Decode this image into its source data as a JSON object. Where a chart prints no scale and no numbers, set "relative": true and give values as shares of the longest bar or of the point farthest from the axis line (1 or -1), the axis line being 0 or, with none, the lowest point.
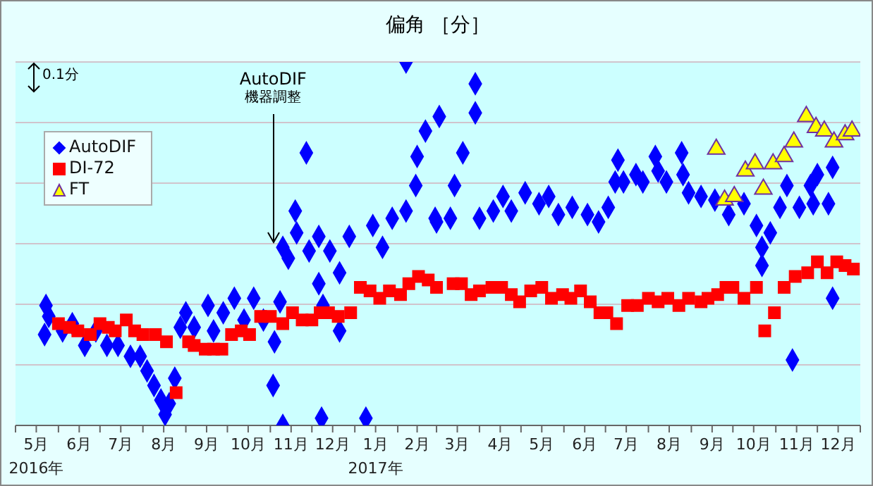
{
  "chart_data": {
    "type": "scatter",
    "title": "偏角 ［分］",
    "relative": true,
    "grid": "y",
    "legend": "top left",
    "tick_labels": "x",
    "xlim": [
      "2016-05-01",
      "2018-01-01"
    ],
    "xticks": [
      {
        "value": "2016-05-01",
        "label": null
      },
      {
        "value": "2016-05-16",
        "label": "5月\n2016年"
      },
      {
        "value": "2016-06-01",
        "label": null
      },
      {
        "value": "2016-06-16",
        "label": "6月"
      },
      {
        "value": "2016-07-01",
        "label": null
      },
      {
        "value": "2016-07-16",
        "label": "7月"
      },
      {
        "value": "2016-08-01",
        "label": null
      },
      {
        "value": "2016-08-16",
        "label": "8月"
      },
      {
        "value": "2016-09-01",
        "label": null
      },
      {
        "value": "2016-09-16",
        "label": "9月"
      },
      {
        "value": "2016-10-01",
        "label": null
      },
      {
        "value": "2016-10-16",
        "label": "10月"
      },
      {
        "value": "2016-11-01",
        "label": null
      },
      {
        "value": "2016-11-16",
        "label": "11月"
      },
      {
        "value": "2016-12-01",
        "label": null
      },
      {
        "value": "2016-12-16",
        "label": "12月"
      },
      {
        "value": "2017-01-01",
        "label": null
      },
      {
        "value": "2017-01-16",
        "label": "1月\n2017年"
      },
      {
        "value": "2017-02-01",
        "label": null
      },
      {
        "value": "2017-02-15",
        "label": "2月"
      },
      {
        "value": "2017-03-01",
        "label": null
      },
      {
        "value": "2017-03-16",
        "label": "3月"
      },
      {
        "value": "2017-04-01",
        "label": null
      },
      {
        "value": "2017-04-16",
        "label": "4月"
      },
      {
        "value": "2017-05-01",
        "label": null
      },
      {
        "value": "2017-05-16",
        "label": "5月"
      },
      {
        "value": "2017-06-01",
        "label": null
      },
      {
        "value": "2017-06-16",
        "label": "6月"
      },
      {
        "value": "2017-07-01",
        "label": null
      },
      {
        "value": "2017-07-16",
        "label": "7月"
      },
      {
        "value": "2017-08-01",
        "label": null
      },
      {
        "value": "2017-08-16",
        "label": "8月"
      },
      {
        "value": "2017-09-01",
        "label": null
      },
      {
        "value": "2017-09-16",
        "label": "9月"
      },
      {
        "value": "2017-10-01",
        "label": null
      },
      {
        "value": "2017-10-16",
        "label": "10月"
      },
      {
        "value": "2017-11-01",
        "label": null
      },
      {
        "value": "2017-11-16",
        "label": "11月"
      },
      {
        "value": "2017-12-01",
        "label": null
      },
      {
        "value": "2017-12-16",
        "label": "12月"
      },
      {
        "value": "2018-01-01",
        "label": null
      }
    ],
    "annotations": [
      "0.1分",
      {
        "text": "AutoDIF\n機器調整",
        "x": "2016-11-03",
        "y": 0.5
      }
    ],
    "series": [
      {
        "name": "AutoDIF",
        "color": "#0000ff",
        "marker": "diamond",
        "x": [
          "2016-05-23",
          "2016-05-22",
          "2016-05-25",
          "2016-06-04",
          "2016-06-11",
          "2016-06-20",
          "2016-06-28",
          "2016-07-06",
          "2016-07-14",
          "2016-07-23",
          "2016-07-30",
          "2016-08-04",
          "2016-08-09",
          "2016-08-14",
          "2016-08-17",
          "2016-08-20",
          "2016-08-24",
          "2016-08-28",
          "2016-09-01",
          "2016-09-07",
          "2016-09-17",
          "2016-09-21",
          "2016-09-28",
          "2016-10-06",
          "2016-10-13",
          "2016-10-20",
          "2016-10-27",
          "2016-11-04",
          "2016-11-03",
          "2016-11-08",
          "2016-11-10",
          "2016-11-10",
          "2016-11-14",
          "2016-11-19",
          "2016-11-20",
          "2016-11-27",
          "2016-11-29",
          "2016-12-06",
          "2016-12-06",
          "2016-12-09",
          "2016-12-08",
          "2016-12-14",
          "2016-12-21",
          "2016-12-21",
          "2016-12-28",
          "2017-01-09",
          "2017-01-14",
          "2017-01-21",
          "2017-01-28",
          "2017-02-07",
          "2017-02-07",
          "2017-02-14",
          "2017-02-15",
          "2017-02-21",
          "2017-02-28",
          "2017-03-03",
          "2017-03-01",
          "2017-03-11",
          "2017-03-14",
          "2017-03-20",
          "2017-03-29",
          "2017-03-29",
          "2017-04-01",
          "2017-04-11",
          "2017-04-18",
          "2017-04-24",
          "2017-05-04",
          "2017-05-14",
          "2017-05-21",
          "2017-05-28",
          "2017-06-07",
          "2017-06-18",
          "2017-06-26",
          "2017-07-03",
          "2017-07-08",
          "2017-07-10",
          "2017-07-14",
          "2017-07-23",
          "2017-07-28",
          "2017-08-06",
          "2017-08-08",
          "2017-08-14",
          "2017-08-25",
          "2017-08-26",
          "2017-08-30",
          "2017-09-08",
          "2017-09-18",
          "2017-09-28",
          "2017-10-09",
          "2017-10-18",
          "2017-10-22",
          "2017-10-22",
          "2017-10-28",
          "2017-11-04",
          "2017-11-09",
          "2017-11-13",
          "2017-11-18",
          "2017-11-26",
          "2017-11-28",
          "2017-12-01",
          "2017-12-09",
          "2017-12-12",
          "2017-12-12"
        ],
        "values": [
          0.33,
          0.25,
          0.3,
          0.26,
          0.28,
          0.22,
          0.26,
          0.22,
          0.22,
          0.19,
          0.19,
          0.15,
          0.11,
          0.07,
          0.03,
          0.06,
          0.13,
          0.27,
          0.31,
          0.27,
          0.33,
          0.26,
          0.31,
          0.35,
          0.29,
          0.35,
          0.29,
          0.23,
          0.11,
          0.34,
          0,
          0.49,
          0.46,
          0.59,
          0.53,
          0.75,
          0.48,
          0.52,
          0.39,
          0.33,
          0.02,
          0.48,
          0.42,
          0.26,
          0.52,
          0.02,
          0.55,
          0.49,
          0.57,
          1.0,
          0.59,
          0.66,
          0.74,
          0.81,
          0.57,
          0.85,
          0.56,
          0.57,
          0.66,
          0.75,
          0.94,
          0.86,
          0.57,
          0.59,
          0.63,
          0.59,
          0.64,
          0.61,
          0.63,
          0.58,
          0.6,
          0.58,
          0.56,
          0.6,
          0.67,
          0.73,
          0.67,
          0.69,
          0.67,
          0.74,
          0.7,
          0.67,
          0.75,
          0.69,
          0.64,
          0.63,
          0.62,
          0.58,
          0.61,
          0.55,
          0.49,
          0.44,
          0.53,
          0.6,
          0.66,
          0.18,
          0.6,
          0.66,
          0.61,
          0.69,
          0.61,
          0.35,
          0.71
        ]
      },
      {
        "name": "DI-72",
        "color": "#ff0000",
        "marker": "square",
        "x": [
          "2016-06-01",
          "2016-06-09",
          "2016-06-15",
          "2016-06-24",
          "2016-07-01",
          "2016-07-07",
          "2016-07-12",
          "2016-07-20",
          "2016-07-26",
          "2016-08-01",
          "2016-08-10",
          "2016-08-18",
          "2016-08-25",
          "2016-09-03",
          "2016-09-07",
          "2016-09-15",
          "2016-09-21",
          "2016-09-27",
          "2016-10-04",
          "2016-10-11",
          "2016-10-17",
          "2016-10-25",
          "2016-11-01",
          "2016-11-10",
          "2016-11-17",
          "2016-11-24",
          "2016-12-01",
          "2016-12-07",
          "2016-12-13",
          "2016-12-20",
          "2016-12-29",
          "2017-01-05",
          "2017-01-12",
          "2017-01-19",
          "2017-01-26",
          "2017-02-03",
          "2017-02-09",
          "2017-02-16",
          "2017-02-23",
          "2017-03-01",
          "2017-03-13",
          "2017-03-19",
          "2017-03-26",
          "2017-04-01",
          "2017-04-10",
          "2017-04-17",
          "2017-04-24",
          "2017-04-30",
          "2017-05-08",
          "2017-05-16",
          "2017-05-23",
          "2017-05-31",
          "2017-06-06",
          "2017-06-13",
          "2017-06-20",
          "2017-06-27",
          "2017-07-02",
          "2017-07-09",
          "2017-07-17",
          "2017-07-24",
          "2017-08-01",
          "2017-08-08",
          "2017-08-15",
          "2017-08-23",
          "2017-08-30",
          "2017-09-08",
          "2017-09-13",
          "2017-09-20",
          "2017-09-26",
          "2017-10-01",
          "2017-10-09",
          "2017-10-18",
          "2017-10-24",
          "2017-10-31",
          "2017-11-07",
          "2017-11-15",
          "2017-11-24",
          "2017-12-01",
          "2017-12-08",
          "2017-12-15",
          "2017-12-21",
          "2017-12-27"
        ],
        "values": [
          0.28,
          0.27,
          0.26,
          0.25,
          0.28,
          0.27,
          0.26,
          0.29,
          0.26,
          0.25,
          0.25,
          0.23,
          0.09,
          0.23,
          0.22,
          0.21,
          0.21,
          0.21,
          0.25,
          0.26,
          0.25,
          0.3,
          0.3,
          0.28,
          0.31,
          0.29,
          0.29,
          0.31,
          0.31,
          0.3,
          0.31,
          0.38,
          0.37,
          0.35,
          0.37,
          0.36,
          0.39,
          0.41,
          0.4,
          0.38,
          0.39,
          0.39,
          0.36,
          0.37,
          0.38,
          0.38,
          0.36,
          0.34,
          0.37,
          0.38,
          0.35,
          0.36,
          0.35,
          0.37,
          0.34,
          0.31,
          0.31,
          0.28,
          0.33,
          0.33,
          0.35,
          0.34,
          0.35,
          0.33,
          0.35,
          0.34,
          0.35,
          0.36,
          0.38,
          0.38,
          0.35,
          0.38,
          0.26,
          0.31,
          0.38,
          0.41,
          0.42,
          0.45,
          0.42,
          0.45,
          0.44,
          0.43
        ]
      },
      {
        "name": "FT",
        "color": "#ffff00",
        "marker": "triangle",
        "x": [
          "2017-09-19",
          "2017-09-25",
          "2017-10-02",
          "2017-10-10",
          "2017-10-17",
          "2017-10-23",
          "2017-10-30",
          "2017-11-07",
          "2017-11-14",
          "2017-11-23",
          "2017-11-30",
          "2017-12-06",
          "2017-12-13",
          "2017-12-21",
          "2017-12-26"
        ],
        "values": [
          0.76,
          0.62,
          0.63,
          0.7,
          0.72,
          0.65,
          0.72,
          0.74,
          0.78,
          0.85,
          0.82,
          0.81,
          0.78,
          0.8,
          0.81
        ]
      }
    ]
  }
}
